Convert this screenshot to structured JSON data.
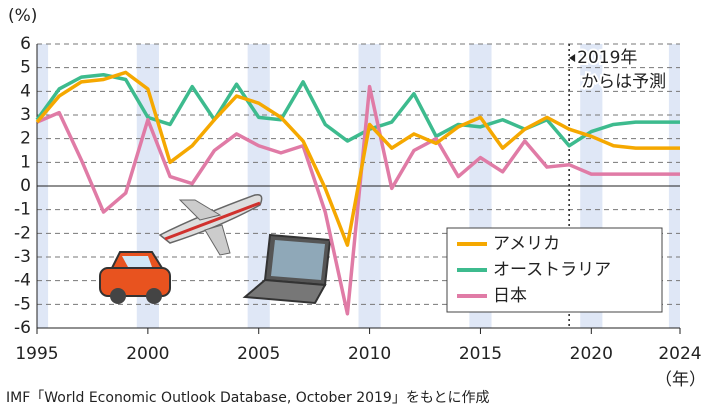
{
  "chart_data": {
    "type": "line",
    "y_label": "(%)",
    "x_label": "（年）",
    "source": "IMF「World Economic Outlook Database, October 2019」をもとに作成",
    "annotation": {
      "lines": [
        "2019年",
        "からは予測"
      ],
      "x": 2019
    },
    "x": [
      1995,
      1996,
      1997,
      1998,
      1999,
      2000,
      2001,
      2002,
      2003,
      2004,
      2005,
      2006,
      2007,
      2008,
      2009,
      2010,
      2011,
      2012,
      2013,
      2014,
      2015,
      2016,
      2017,
      2018,
      2019,
      2020,
      2021,
      2022,
      2023,
      2024
    ],
    "series": [
      {
        "name": "アメリカ",
        "color": "#f5a800",
        "values": [
          2.7,
          3.8,
          4.4,
          4.5,
          4.8,
          4.1,
          1.0,
          1.7,
          2.8,
          3.8,
          3.5,
          2.9,
          1.9,
          -0.1,
          -2.5,
          2.6,
          1.6,
          2.2,
          1.8,
          2.5,
          2.9,
          1.6,
          2.4,
          2.9,
          2.4,
          2.1,
          1.7,
          1.6,
          1.6,
          1.6
        ]
      },
      {
        "name": "オーストラリア",
        "color": "#3dbb8e",
        "values": [
          2.8,
          4.1,
          4.6,
          4.7,
          4.5,
          2.9,
          2.6,
          4.2,
          2.8,
          4.3,
          2.9,
          2.8,
          4.4,
          2.6,
          1.9,
          2.4,
          2.7,
          3.9,
          2.1,
          2.6,
          2.5,
          2.8,
          2.4,
          2.8,
          1.7,
          2.3,
          2.6,
          2.7,
          2.7,
          2.7
        ]
      },
      {
        "name": "日本",
        "color": "#e07ba6",
        "values": [
          2.7,
          3.1,
          1.1,
          -1.1,
          -0.3,
          2.8,
          0.4,
          0.1,
          1.5,
          2.2,
          1.7,
          1.4,
          1.7,
          -1.1,
          -5.4,
          4.2,
          -0.1,
          1.5,
          2.0,
          0.4,
          1.2,
          0.6,
          1.9,
          0.8,
          0.9,
          0.5,
          0.5,
          0.5,
          0.5,
          0.5
        ]
      }
    ],
    "xlim": [
      1995,
      2024
    ],
    "xticks": [
      1995,
      2000,
      2005,
      2010,
      2015,
      2020,
      2024
    ],
    "ylim": [
      -6,
      6
    ],
    "yticks": [
      -6,
      -5,
      -4,
      -3,
      -2,
      -1,
      0,
      1,
      2,
      3,
      4,
      5,
      6
    ],
    "grid": true,
    "legend": "lower right"
  }
}
